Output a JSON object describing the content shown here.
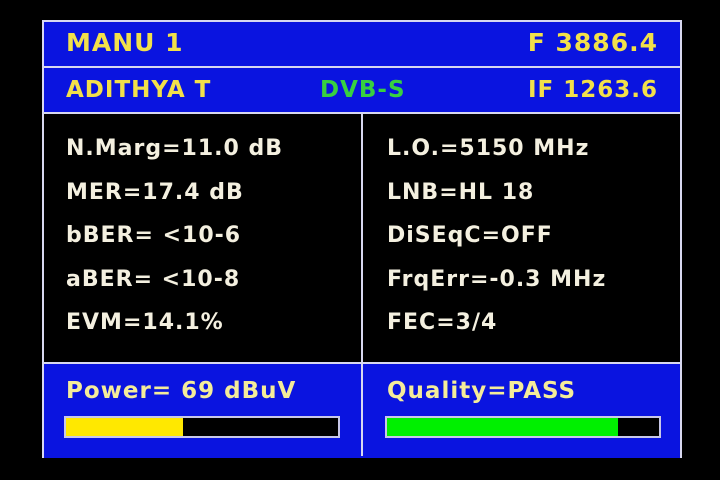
{
  "header": {
    "name": "MANU 1",
    "frequency": "F 3886.4",
    "satellite": "ADITHYA T",
    "standard": "DVB-S",
    "if_freq": "IF 1263.6"
  },
  "left_params": [
    "N.Marg=11.0 dB",
    "MER=17.4 dB",
    "bBER= <10-6",
    "aBER= <10-8",
    "EVM=14.1%"
  ],
  "right_params": [
    "L.O.=5150 MHz",
    "LNB=HL 18",
    "DiSEqC=OFF",
    "FrqErr=-0.3 MHz",
    "FEC=3/4"
  ],
  "power": {
    "label": "Power= 69 dBuV",
    "level_percent": 43,
    "color": "#ffe800"
  },
  "quality": {
    "label": "Quality=PASS",
    "level_percent": 85,
    "color": "#00f000"
  }
}
